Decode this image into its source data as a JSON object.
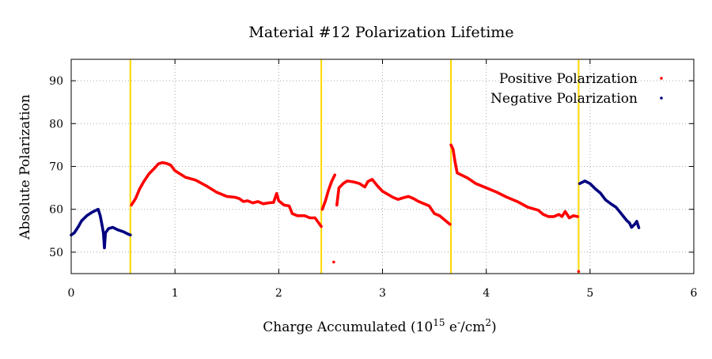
{
  "chart_data": {
    "type": "scatter",
    "title": "Material #12 Polarization Lifetime",
    "xlabel": {
      "base": "Charge Accumulated (10",
      "exp1": "15",
      "mid": " e",
      "exp2": "-",
      "slash": "/cm",
      "exp3": "2",
      "close": ")"
    },
    "ylabel": "Absolute Polarization",
    "xlim": [
      0,
      6
    ],
    "ylim": [
      45,
      95
    ],
    "xticks": [
      "0",
      "1",
      "2",
      "3",
      "4",
      "5",
      "6"
    ],
    "yticks": [
      "50",
      "60",
      "70",
      "80",
      "90"
    ],
    "grid": true,
    "legend_position": "top-right",
    "vlines": [
      0.57,
      2.41,
      3.66,
      4.89
    ],
    "series": [
      {
        "name": "Positive Polarization",
        "color": "#ff0000",
        "segments": [
          [
            [
              0.58,
              61
            ],
            [
              0.62,
              62.5
            ],
            [
              0.66,
              64.8
            ],
            [
              0.7,
              66.5
            ],
            [
              0.75,
              68.3
            ],
            [
              0.8,
              69.5
            ],
            [
              0.84,
              70.6
            ],
            [
              0.88,
              70.9
            ],
            [
              0.92,
              70.7
            ],
            [
              0.96,
              70.3
            ],
            [
              1.0,
              69
            ],
            [
              1.1,
              67.5
            ],
            [
              1.2,
              66.8
            ],
            [
              1.3,
              65.5
            ],
            [
              1.4,
              64
            ],
            [
              1.5,
              63
            ],
            [
              1.58,
              62.8
            ],
            [
              1.62,
              62.5
            ],
            [
              1.66,
              61.8
            ],
            [
              1.7,
              62
            ],
            [
              1.75,
              61.5
            ],
            [
              1.8,
              61.8
            ],
            [
              1.85,
              61.3
            ],
            [
              1.9,
              61.5
            ],
            [
              1.95,
              61.6
            ],
            [
              1.98,
              63.7
            ],
            [
              2.0,
              62
            ],
            [
              2.05,
              61
            ],
            [
              2.1,
              60.8
            ],
            [
              2.13,
              59
            ],
            [
              2.18,
              58.5
            ],
            [
              2.25,
              58.5
            ],
            [
              2.3,
              58
            ],
            [
              2.35,
              58
            ],
            [
              2.38,
              57
            ],
            [
              2.41,
              56
            ]
          ],
          [
            [
              2.42,
              60
            ],
            [
              2.45,
              62
            ],
            [
              2.48,
              64.5
            ],
            [
              2.51,
              66.5
            ],
            [
              2.54,
              68
            ]
          ],
          [
            [
              2.56,
              61
            ],
            [
              2.58,
              65
            ],
            [
              2.62,
              66
            ],
            [
              2.66,
              66.6
            ],
            [
              2.72,
              66.4
            ],
            [
              2.78,
              66
            ],
            [
              2.83,
              65.2
            ],
            [
              2.86,
              66.5
            ],
            [
              2.9,
              67
            ],
            [
              2.95,
              65.5
            ],
            [
              3.0,
              64.2
            ],
            [
              3.05,
              63.5
            ],
            [
              3.1,
              62.8
            ],
            [
              3.15,
              62.3
            ],
            [
              3.2,
              62.7
            ],
            [
              3.25,
              63
            ],
            [
              3.3,
              62.5
            ],
            [
              3.35,
              61.8
            ],
            [
              3.4,
              61.3
            ],
            [
              3.45,
              60.8
            ],
            [
              3.5,
              59
            ],
            [
              3.55,
              58.5
            ],
            [
              3.6,
              57.5
            ],
            [
              3.65,
              56.5
            ]
          ],
          [
            [
              3.66,
              75
            ],
            [
              3.68,
              74
            ],
            [
              3.7,
              71
            ],
            [
              3.72,
              68.5
            ],
            [
              3.76,
              68
            ],
            [
              3.82,
              67.3
            ],
            [
              3.9,
              66
            ],
            [
              4.0,
              65
            ],
            [
              4.1,
              64
            ],
            [
              4.2,
              62.8
            ],
            [
              4.3,
              61.8
            ],
            [
              4.4,
              60.5
            ],
            [
              4.5,
              59.8
            ],
            [
              4.55,
              58.8
            ],
            [
              4.6,
              58.3
            ],
            [
              4.65,
              58.3
            ],
            [
              4.7,
              58.8
            ],
            [
              4.73,
              58.3
            ],
            [
              4.76,
              59.5
            ],
            [
              4.8,
              58
            ],
            [
              4.84,
              58.5
            ],
            [
              4.88,
              58.3
            ]
          ]
        ],
        "isolated": [
          [
            2.53,
            47.7
          ],
          [
            4.89,
            45.5
          ]
        ]
      },
      {
        "name": "Negative Polarization",
        "color": "#000080",
        "segments": [
          [
            [
              0.0,
              54
            ],
            [
              0.03,
              54.5
            ],
            [
              0.07,
              56
            ],
            [
              0.1,
              57.3
            ],
            [
              0.15,
              58.5
            ],
            [
              0.2,
              59.3
            ],
            [
              0.24,
              59.8
            ],
            [
              0.26,
              60
            ],
            [
              0.28,
              58.5
            ],
            [
              0.3,
              56
            ],
            [
              0.31,
              54.5
            ],
            [
              0.32,
              51
            ],
            [
              0.33,
              54.5
            ],
            [
              0.36,
              55.5
            ],
            [
              0.4,
              55.8
            ],
            [
              0.45,
              55.2
            ],
            [
              0.5,
              54.8
            ],
            [
              0.55,
              54.2
            ],
            [
              0.57,
              54
            ]
          ],
          [
            [
              4.9,
              66
            ],
            [
              4.95,
              66.6
            ],
            [
              5.0,
              66
            ],
            [
              5.05,
              64.8
            ],
            [
              5.1,
              63.8
            ],
            [
              5.15,
              62.2
            ],
            [
              5.2,
              61.3
            ],
            [
              5.25,
              60.5
            ],
            [
              5.3,
              59
            ],
            [
              5.35,
              57.5
            ],
            [
              5.38,
              56.8
            ],
            [
              5.4,
              55.8
            ],
            [
              5.43,
              56.5
            ],
            [
              5.45,
              57.2
            ],
            [
              5.47,
              55.7
            ]
          ]
        ],
        "isolated": []
      }
    ]
  }
}
